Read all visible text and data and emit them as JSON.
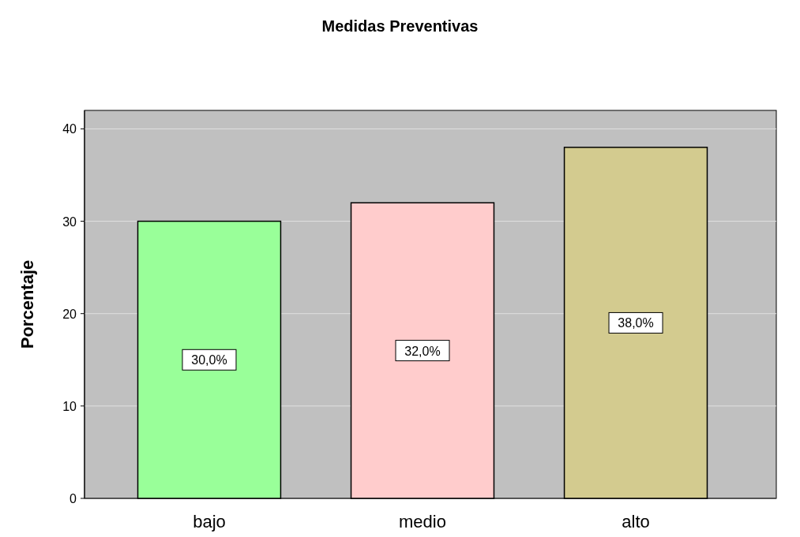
{
  "chart_data": {
    "type": "bar",
    "title": "Medidas Preventivas",
    "ylabel": "Porcentaje",
    "categories": [
      "bajo",
      "medio",
      "alto"
    ],
    "values": [
      30,
      32,
      38
    ],
    "colors": [
      "#99ff99",
      "#ffcccc",
      "#d3cb8f"
    ],
    "value_labels": [
      "30,0%",
      "32,0%",
      "38,0%"
    ],
    "ylim": [
      0,
      42
    ],
    "yticks": [
      0,
      10,
      20,
      30,
      40
    ],
    "grid": "y"
  }
}
